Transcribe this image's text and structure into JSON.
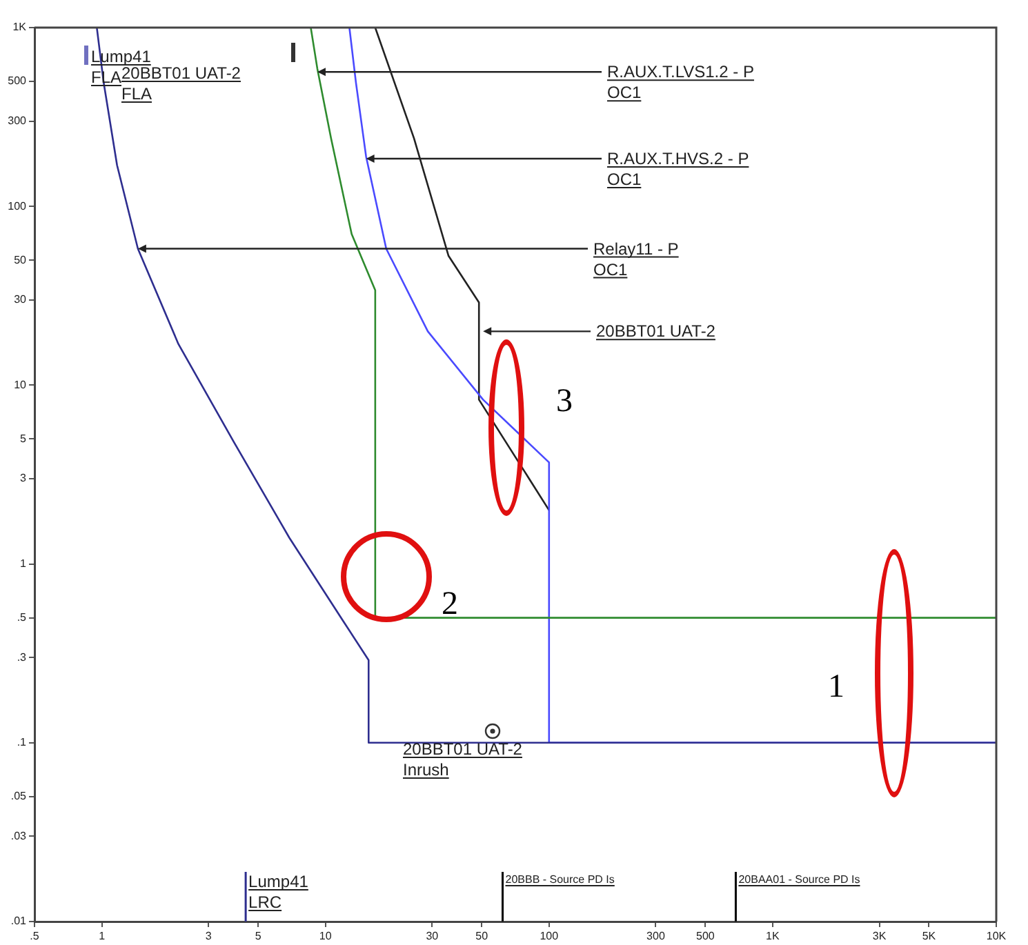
{
  "chart_data": {
    "type": "line",
    "log": "xy",
    "grid": false,
    "legend": false,
    "marker": "none",
    "line_style": "solid",
    "xlim": [
      0.5,
      10000
    ],
    "ylim": [
      0.01,
      1000
    ],
    "xticks": [
      {
        "value": 0.5,
        "label": ".5"
      },
      1,
      3,
      5,
      10,
      30,
      50,
      100,
      300,
      500,
      {
        "value": 1000,
        "label": "1K"
      },
      {
        "value": 3000,
        "label": "3K"
      },
      {
        "value": 5000,
        "label": "5K"
      },
      {
        "value": 10000,
        "label": "10K"
      }
    ],
    "yticks": [
      {
        "value": 1000,
        "label": "1K"
      },
      500,
      300,
      100,
      50,
      30,
      10,
      5,
      3,
      1,
      {
        "value": 0.5,
        "label": ".5"
      },
      {
        "value": 0.3,
        "label": ".3"
      },
      {
        "value": 0.1,
        "label": ".1"
      },
      {
        "value": 0.05,
        "label": ".05"
      },
      {
        "value": 0.03,
        "label": ".03"
      },
      {
        "value": 0.01,
        "label": ".01"
      }
    ],
    "series": [
      {
        "color": "#2e2e8f",
        "x": [
          0.95,
          1.02,
          1.17,
          1.45,
          2.2,
          3.9,
          6.9,
          12,
          15.6,
          15.6,
          10000
        ],
        "values": [
          1000,
          490,
          170,
          58,
          17,
          4.8,
          1.4,
          0.48,
          0.29,
          0.1,
          0.1
        ]
      },
      {
        "color": "#2e8b2e",
        "x": [
          8.6,
          9.2,
          10.6,
          13.1,
          16.7,
          16.7,
          10000
        ],
        "values": [
          1000,
          590,
          240,
          70,
          34,
          0.5,
          0.5
        ]
      },
      {
        "color": "#4a4aff",
        "x": [
          12.8,
          13.7,
          15.2,
          18.7,
          28.7,
          50.7,
          100,
          100,
          10000
        ],
        "values": [
          1000,
          490,
          190,
          58,
          20,
          8.3,
          3.7,
          0.1,
          0.1
        ]
      },
      {
        "color": "#222222",
        "x": [
          16.7,
          24.9,
          35.5,
          48.6,
          48.6,
          100
        ],
        "values": [
          1000,
          240,
          53,
          29,
          8.3,
          2
        ]
      }
    ],
    "ref_lines": [
      {
        "axis": "x",
        "value": 4.4,
        "label": "Lump41\nLRC",
        "color": "#2e2e8f"
      },
      {
        "axis": "x",
        "value": 62,
        "label": "20BBB - Source PD Is",
        "color": "#000000"
      },
      {
        "axis": "x",
        "value": 684,
        "label": "20BAA01 - Source PD Is",
        "color": "#000000"
      }
    ],
    "annotations": [
      "Lump41\nFLA",
      "20BBT01 UAT-2\nFLA",
      {
        "text": "R.AUX.T.LVS1.2 - P\nOC1",
        "x": 9.2,
        "y": 565
      },
      {
        "text": "R.AUX.T.HVS.2 - P\nOC1",
        "x": 15.2,
        "y": 185
      },
      {
        "text": "Relay11 - P\nOC1",
        "x": 1.45,
        "y": 58
      },
      {
        "text": "20BBT01 UAT-2",
        "x": 50.7,
        "y": 20
      },
      "20BBT01 UAT-2\nInrush",
      "1",
      "2",
      "3"
    ]
  }
}
